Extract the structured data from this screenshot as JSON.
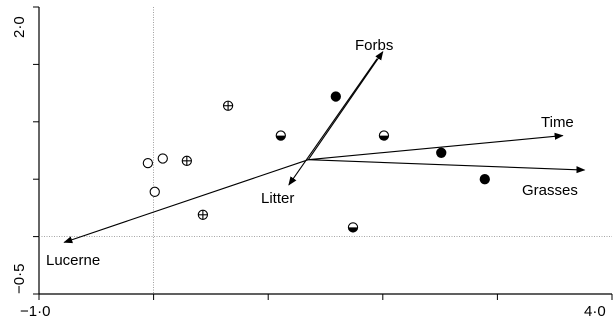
{
  "chart_data": {
    "type": "scatter",
    "title": "",
    "xlabel": "",
    "ylabel": "",
    "xlim": [
      -1.0,
      4.0
    ],
    "ylim": [
      -0.5,
      2.0
    ],
    "grid": false,
    "zero_lines": true,
    "x_tick_labels": [
      "−1·0",
      "4·0"
    ],
    "y_tick_labels": [
      "2·0",
      "−0·5"
    ],
    "symbols": {
      "open": "open-circle",
      "cross": "circle-with-cross",
      "half": "half-filled-circle",
      "filled": "filled-circle"
    },
    "points": [
      {
        "x": -0.05,
        "y": 0.64,
        "symbol": "open"
      },
      {
        "x": 0.08,
        "y": 0.68,
        "symbol": "open"
      },
      {
        "x": 0.01,
        "y": 0.39,
        "symbol": "open"
      },
      {
        "x": 0.29,
        "y": 0.66,
        "symbol": "cross"
      },
      {
        "x": 0.65,
        "y": 1.14,
        "symbol": "cross"
      },
      {
        "x": 0.43,
        "y": 0.19,
        "symbol": "cross"
      },
      {
        "x": 1.11,
        "y": 0.88,
        "symbol": "half"
      },
      {
        "x": 2.01,
        "y": 0.88,
        "symbol": "half"
      },
      {
        "x": 1.74,
        "y": 0.08,
        "symbol": "half"
      },
      {
        "x": 1.59,
        "y": 1.22,
        "symbol": "filled"
      },
      {
        "x": 2.51,
        "y": 0.73,
        "symbol": "filled"
      },
      {
        "x": 2.89,
        "y": 0.5,
        "symbol": "filled"
      }
    ],
    "vectors": [
      {
        "label": "Forbs",
        "from": [
          1.35,
          0.67
        ],
        "to": [
          2.0,
          1.61
        ]
      },
      {
        "label": "Litter",
        "from": [
          1.95,
          1.55
        ],
        "to": [
          1.18,
          0.45
        ]
      },
      {
        "label": "Time",
        "from": [
          1.35,
          0.67
        ],
        "to": [
          3.57,
          0.88
        ]
      },
      {
        "label": "Grasses",
        "from": [
          1.35,
          0.67
        ],
        "to": [
          3.76,
          0.58
        ]
      },
      {
        "label": "Lucerne",
        "from": [
          1.35,
          0.67
        ],
        "to": [
          -0.78,
          -0.05
        ]
      }
    ]
  }
}
